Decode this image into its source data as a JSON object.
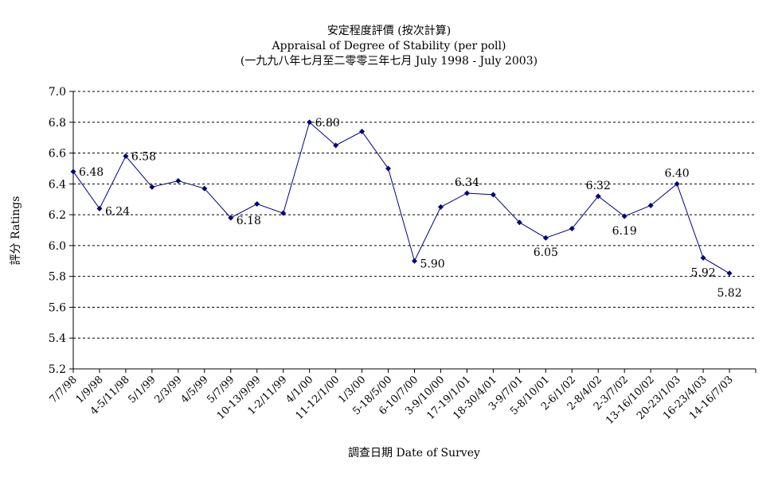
{
  "chart_data": {
    "type": "line",
    "title": "安定程度評價 (按次計算)",
    "subtitle": "Appraisal of Degree of Stability (per poll)",
    "subtitle2": "(一九九八年七月至二零零三年七月 July 1998 - July 2003)",
    "xlabel": "調查日期 Date of Survey",
    "ylabel": "評分 Ratings",
    "ylim": [
      5.2,
      7.0
    ],
    "yticks": [
      "5.2",
      "5.4",
      "5.6",
      "5.8",
      "6.0",
      "6.2",
      "6.4",
      "6.6",
      "6.8",
      "7.0"
    ],
    "grid": true,
    "categories": [
      "7/7/98",
      "1/9/98",
      "4-5/11/98",
      "5/1/99",
      "2/3/99",
      "4/5/99",
      "5/7/99",
      "10-13/9/99",
      "1-2/11/99",
      "4/1/00",
      "11-12/1/00",
      "1/3/00",
      "5-18/5/00",
      "6-10/7/00",
      "3-9/10/00",
      "17-19/1/01",
      "18-30/4/01",
      "3-9/7/01",
      "5-8/10/01",
      "2-6/1/02",
      "2-8/4/02",
      "2-3/7/02",
      "13-16/10/02",
      "20-23/1/03",
      "16-23/4/03",
      "14-16/7/03"
    ],
    "series": [
      {
        "values": [
          6.48,
          6.24,
          6.58,
          6.38,
          6.42,
          6.37,
          6.18,
          6.27,
          6.21,
          6.8,
          6.65,
          6.74,
          6.5,
          5.9,
          6.25,
          6.34,
          6.33,
          6.15,
          6.05,
          6.11,
          6.32,
          6.19,
          6.26,
          6.4,
          5.92,
          5.82
        ],
        "color": "#000080"
      }
    ],
    "data_labels": [
      {
        "index": 0,
        "text": "6.48"
      },
      {
        "index": 1,
        "text": "6.24"
      },
      {
        "index": 2,
        "text": "6.58"
      },
      {
        "index": 6,
        "text": "6.18"
      },
      {
        "index": 9,
        "text": "6.80"
      },
      {
        "index": 13,
        "text": "5.90"
      },
      {
        "index": 15,
        "text": "6.34"
      },
      {
        "index": 18,
        "text": "6.05"
      },
      {
        "index": 20,
        "text": "6.32"
      },
      {
        "index": 21,
        "text": "6.19"
      },
      {
        "index": 23,
        "text": "6.40"
      },
      {
        "index": 24,
        "text": "5.92"
      },
      {
        "index": 25,
        "text": "5.82"
      }
    ]
  }
}
